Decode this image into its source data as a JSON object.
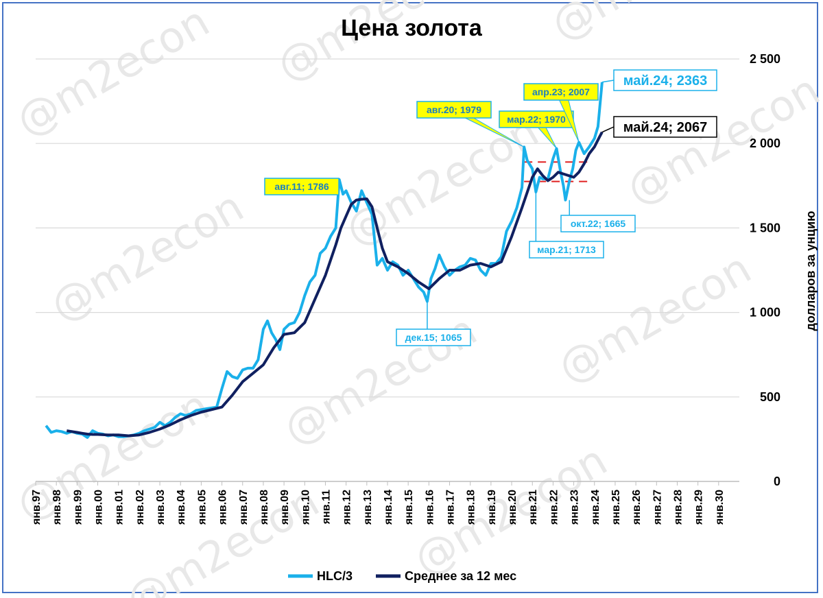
{
  "chart_data": {
    "type": "line",
    "title": "Цена золота",
    "ylabel": "долларов за унцию",
    "ylim": [
      0,
      2500
    ],
    "yticks": [
      {
        "value": 0,
        "label": "0"
      },
      {
        "value": 500,
        "label": "500"
      },
      {
        "value": 1000,
        "label": "1 000"
      },
      {
        "value": 1500,
        "label": "1 500"
      },
      {
        "value": 2000,
        "label": "2 000"
      },
      {
        "value": 2500,
        "label": "2 500"
      }
    ],
    "xrange": [
      1997,
      2031
    ],
    "xticks": [
      {
        "value": 1997,
        "label": "янв.97"
      },
      {
        "value": 1998,
        "label": "янв.98"
      },
      {
        "value": 1999,
        "label": "янв.99"
      },
      {
        "value": 2000,
        "label": "янв.00"
      },
      {
        "value": 2001,
        "label": "янв.01"
      },
      {
        "value": 2002,
        "label": "янв.02"
      },
      {
        "value": 2003,
        "label": "янв.03"
      },
      {
        "value": 2004,
        "label": "янв.04"
      },
      {
        "value": 2005,
        "label": "янв.05"
      },
      {
        "value": 2006,
        "label": "янв.06"
      },
      {
        "value": 2007,
        "label": "янв.07"
      },
      {
        "value": 2008,
        "label": "янв.08"
      },
      {
        "value": 2009,
        "label": "янв.09"
      },
      {
        "value": 2010,
        "label": "янв.10"
      },
      {
        "value": 2011,
        "label": "янв.11"
      },
      {
        "value": 2012,
        "label": "янв.12"
      },
      {
        "value": 2013,
        "label": "янв.13"
      },
      {
        "value": 2014,
        "label": "янв.14"
      },
      {
        "value": 2015,
        "label": "янв.15"
      },
      {
        "value": 2016,
        "label": "янв.16"
      },
      {
        "value": 2017,
        "label": "янв.17"
      },
      {
        "value": 2018,
        "label": "янв.18"
      },
      {
        "value": 2019,
        "label": "янв.19"
      },
      {
        "value": 2020,
        "label": "янв.20"
      },
      {
        "value": 2021,
        "label": "янв.21"
      },
      {
        "value": 2022,
        "label": "янв.22"
      },
      {
        "value": 2023,
        "label": "янв.23"
      },
      {
        "value": 2024,
        "label": "янв.24"
      },
      {
        "value": 2025,
        "label": "янв.25"
      },
      {
        "value": 2026,
        "label": "янв.26"
      },
      {
        "value": 2027,
        "label": "янв.27"
      },
      {
        "value": 2028,
        "label": "янв.28"
      },
      {
        "value": 2029,
        "label": "янв.29"
      },
      {
        "value": 2030,
        "label": "янв.30"
      }
    ],
    "grid": true,
    "legend_position": "bottom",
    "series": [
      {
        "name": "HLC/3",
        "color": "#1ab0ea",
        "x": [
          1997.5,
          1997.75,
          1998.0,
          1998.25,
          1998.5,
          1998.75,
          1999.0,
          1999.25,
          1999.5,
          1999.75,
          2000.0,
          2000.25,
          2000.5,
          2000.75,
          2001.0,
          2001.25,
          2001.5,
          2001.75,
          2002.0,
          2002.25,
          2002.5,
          2002.75,
          2003.0,
          2003.25,
          2003.5,
          2003.75,
          2004.0,
          2004.25,
          2004.5,
          2004.75,
          2005.0,
          2005.25,
          2005.5,
          2005.75,
          2006.0,
          2006.25,
          2006.5,
          2006.75,
          2007.0,
          2007.25,
          2007.5,
          2007.75,
          2008.0,
          2008.2,
          2008.4,
          2008.6,
          2008.8,
          2009.0,
          2009.25,
          2009.5,
          2009.75,
          2010.0,
          2010.25,
          2010.5,
          2010.75,
          2011.0,
          2011.25,
          2011.5,
          2011.67,
          2011.85,
          2012.0,
          2012.25,
          2012.5,
          2012.75,
          2013.0,
          2013.25,
          2013.5,
          2013.75,
          2014.0,
          2014.25,
          2014.5,
          2014.75,
          2015.0,
          2015.25,
          2015.5,
          2015.75,
          2015.92,
          2016.1,
          2016.3,
          2016.5,
          2016.75,
          2017.0,
          2017.25,
          2017.5,
          2017.75,
          2018.0,
          2018.25,
          2018.5,
          2018.75,
          2019.0,
          2019.25,
          2019.5,
          2019.75,
          2020.0,
          2020.25,
          2020.5,
          2020.6,
          2020.75,
          2021.0,
          2021.17,
          2021.35,
          2021.5,
          2021.75,
          2022.0,
          2022.17,
          2022.35,
          2022.5,
          2022.6,
          2022.79,
          2022.95,
          2023.1,
          2023.25,
          2023.5,
          2023.75,
          2024.0,
          2024.17,
          2024.37
        ],
        "y": [
          330,
          290,
          300,
          295,
          285,
          295,
          285,
          280,
          260,
          300,
          285,
          280,
          270,
          275,
          265,
          265,
          270,
          275,
          285,
          300,
          310,
          320,
          350,
          330,
          350,
          380,
          400,
          390,
          400,
          420,
          425,
          430,
          435,
          440,
          550,
          650,
          620,
          610,
          660,
          670,
          670,
          720,
          900,
          950,
          880,
          840,
          780,
          900,
          930,
          940,
          1000,
          1100,
          1180,
          1220,
          1350,
          1380,
          1450,
          1500,
          1786,
          1700,
          1720,
          1650,
          1600,
          1720,
          1650,
          1580,
          1280,
          1320,
          1250,
          1300,
          1280,
          1220,
          1250,
          1200,
          1150,
          1120,
          1065,
          1200,
          1260,
          1340,
          1270,
          1220,
          1250,
          1270,
          1280,
          1320,
          1310,
          1250,
          1220,
          1290,
          1290,
          1330,
          1480,
          1540,
          1620,
          1740,
          1979,
          1900,
          1850,
          1713,
          1800,
          1790,
          1790,
          1910,
          1970,
          1840,
          1750,
          1665,
          1780,
          1850,
          1960,
          2007,
          1940,
          1980,
          2030,
          2100,
          2363
        ]
      },
      {
        "name": "Среднее за 12 мес",
        "color": "#102060",
        "x": [
          1998.5,
          1998.75,
          1999.0,
          1999.25,
          1999.5,
          1999.75,
          2000.0,
          2000.5,
          2001.0,
          2001.5,
          2002.0,
          2002.5,
          2003.0,
          2003.5,
          2004.0,
          2004.5,
          2005.0,
          2005.5,
          2006.0,
          2006.5,
          2007.0,
          2007.5,
          2008.0,
          2008.5,
          2009.0,
          2009.5,
          2010.0,
          2010.5,
          2011.0,
          2011.5,
          2011.75,
          2012.0,
          2012.25,
          2012.5,
          2012.75,
          2013.0,
          2013.25,
          2013.5,
          2013.75,
          2014.0,
          2014.5,
          2015.0,
          2015.5,
          2016.0,
          2016.5,
          2017.0,
          2017.5,
          2018.0,
          2018.5,
          2019.0,
          2019.5,
          2020.0,
          2020.5,
          2021.0,
          2021.25,
          2021.5,
          2021.75,
          2022.0,
          2022.25,
          2022.5,
          2022.75,
          2023.0,
          2023.25,
          2023.5,
          2023.75,
          2024.0,
          2024.25,
          2024.37
        ],
        "y": [
          300,
          295,
          290,
          285,
          280,
          278,
          278,
          275,
          275,
          270,
          275,
          290,
          310,
          335,
          365,
          390,
          410,
          425,
          440,
          510,
          590,
          640,
          690,
          790,
          870,
          880,
          940,
          1080,
          1220,
          1400,
          1500,
          1570,
          1640,
          1665,
          1670,
          1672,
          1625,
          1500,
          1380,
          1300,
          1270,
          1230,
          1180,
          1140,
          1200,
          1250,
          1250,
          1280,
          1290,
          1270,
          1300,
          1450,
          1620,
          1800,
          1850,
          1810,
          1780,
          1800,
          1830,
          1820,
          1810,
          1800,
          1830,
          1880,
          1940,
          1980,
          2040,
          2067
        ]
      }
    ],
    "annotations": [
      {
        "label": "авг.11; 1786",
        "x": 2011.67,
        "y": 1786,
        "style": "yellow"
      },
      {
        "label": "авг.20; 1979",
        "x": 2020.6,
        "y": 1979,
        "style": "yellow"
      },
      {
        "label": "мар.22; 1970",
        "x": 2022.17,
        "y": 1970,
        "style": "yellow"
      },
      {
        "label": "апр.23; 2007",
        "x": 2023.25,
        "y": 2007,
        "style": "yellow"
      },
      {
        "label": "дек.15; 1065",
        "x": 2015.92,
        "y": 1065,
        "style": "blue"
      },
      {
        "label": "мар.21; 1713",
        "x": 2021.17,
        "y": 1713,
        "style": "blue"
      },
      {
        "label": "окт.22; 1665",
        "x": 2022.79,
        "y": 1665,
        "style": "blue"
      },
      {
        "label": "май.24; 2363",
        "x": 2024.37,
        "y": 2363,
        "style": "blue-large"
      },
      {
        "label": "май.24; 2067",
        "x": 2024.37,
        "y": 2067,
        "style": "dark-large"
      }
    ],
    "reference_lines": [
      {
        "y": 1890,
        "x_from": 2020.6,
        "x_to": 2023.8,
        "color": "#e02020",
        "style": "dashed"
      },
      {
        "y": 1775,
        "x_from": 2020.6,
        "x_to": 2023.8,
        "color": "#e02020",
        "style": "dashed"
      }
    ],
    "watermark": "@m2econ"
  }
}
